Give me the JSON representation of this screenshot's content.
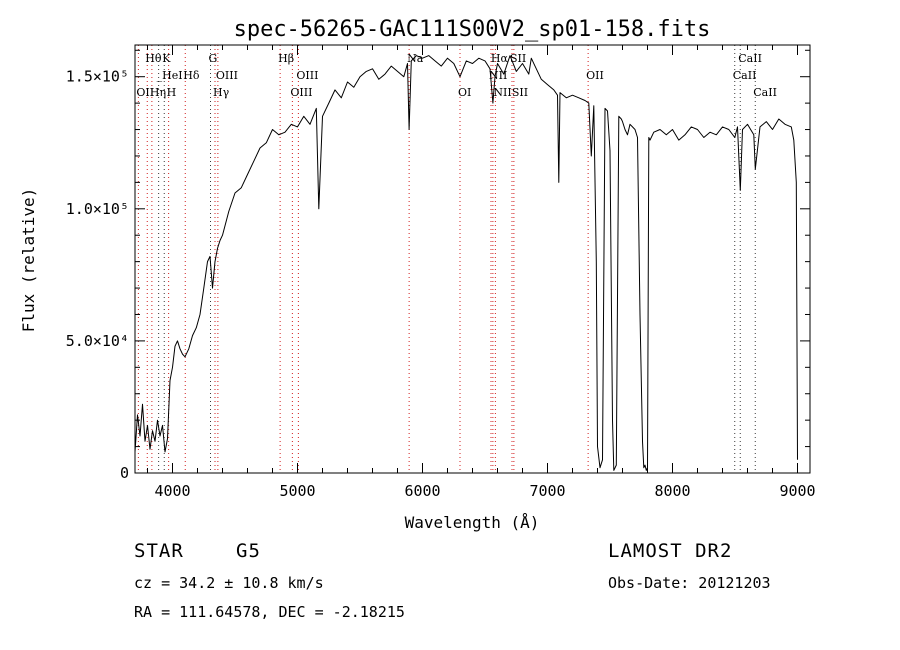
{
  "chart_data": {
    "type": "line",
    "title": "spec-56265-GAC111S00V2_sp01-158.fits",
    "xlabel": "Wavelength (Å)",
    "ylabel": "Flux (relative)",
    "xlim": [
      3700,
      9100
    ],
    "ylim": [
      0,
      162000
    ],
    "x_ticks": [
      4000,
      5000,
      6000,
      7000,
      8000,
      9000
    ],
    "x_tick_labels": [
      "4000",
      "5000",
      "6000",
      "7000",
      "8000",
      "9000"
    ],
    "y_ticks": [
      0,
      50000,
      100000,
      150000
    ],
    "y_tick_labels": [
      "0",
      "5.0×10⁴",
      "1.0×10⁵",
      "1.5×10⁵"
    ],
    "grid": false,
    "series": [
      {
        "x": [
          3700,
          3720,
          3740,
          3760,
          3780,
          3800,
          3820,
          3840,
          3860,
          3880,
          3900,
          3920,
          3940,
          3960,
          3980,
          4000,
          4020,
          4040,
          4060,
          4080,
          4100,
          4130,
          4160,
          4190,
          4220,
          4250,
          4280,
          4300,
          4320,
          4340,
          4360,
          4380,
          4400,
          4450,
          4500,
          4550,
          4600,
          4650,
          4700,
          4750,
          4800,
          4850,
          4900,
          4950,
          5000,
          5050,
          5100,
          5150,
          5170,
          5200,
          5250,
          5300,
          5350,
          5400,
          5450,
          5500,
          5550,
          5600,
          5650,
          5700,
          5750,
          5800,
          5850,
          5880,
          5893,
          5910,
          5950,
          6000,
          6050,
          6100,
          6150,
          6200,
          6250,
          6300,
          6350,
          6400,
          6450,
          6500,
          6540,
          6563,
          6580,
          6600,
          6650,
          6700,
          6750,
          6800,
          6850,
          6870,
          6900,
          6950,
          7000,
          7050,
          7080,
          7090,
          7100,
          7150,
          7200,
          7250,
          7300,
          7330,
          7350,
          7370,
          7390,
          7400,
          7420,
          7440,
          7460,
          7480,
          7500,
          7520,
          7530,
          7550,
          7570,
          7590,
          7600,
          7620,
          7640,
          7660,
          7680,
          7700,
          7720,
          7740,
          7760,
          7770,
          7780,
          7790,
          7800,
          7810,
          7820,
          7850,
          7900,
          7950,
          8000,
          8050,
          8100,
          8150,
          8200,
          8250,
          8300,
          8350,
          8400,
          8450,
          8498,
          8520,
          8542,
          8560,
          8600,
          8650,
          8662,
          8700,
          8750,
          8800,
          8850,
          8900,
          8950,
          8970,
          8990,
          9000
        ],
        "y": [
          8000,
          22000,
          14000,
          26000,
          12000,
          18000,
          9000,
          16000,
          12000,
          20000,
          14000,
          18000,
          8000,
          13000,
          35000,
          40000,
          48000,
          50000,
          47000,
          45000,
          44000,
          47000,
          52000,
          55000,
          60000,
          70000,
          80000,
          82000,
          70000,
          80000,
          85000,
          88000,
          90000,
          99000,
          106000,
          108000,
          113000,
          118000,
          123000,
          125000,
          130000,
          128000,
          129000,
          132000,
          131000,
          135000,
          132000,
          138000,
          100000,
          135000,
          140000,
          145000,
          142000,
          148000,
          146000,
          150000,
          152000,
          153000,
          149000,
          151000,
          154000,
          152000,
          150000,
          155000,
          130000,
          156000,
          158000,
          157000,
          158000,
          156000,
          154000,
          157000,
          155000,
          150000,
          156000,
          155000,
          157000,
          156000,
          153000,
          140000,
          150000,
          155000,
          151000,
          158000,
          152000,
          155000,
          151000,
          157000,
          154000,
          149000,
          147000,
          145000,
          143000,
          110000,
          144000,
          142000,
          143000,
          142000,
          141000,
          140000,
          120000,
          139000,
          80000,
          10000,
          2000,
          5000,
          138000,
          137000,
          122000,
          20000,
          1000,
          3000,
          135000,
          134000,
          133000,
          130000,
          128000,
          132000,
          131000,
          130000,
          127000,
          60000,
          12000,
          2000,
          3000,
          1000,
          2000,
          127000,
          126000,
          129000,
          130000,
          128000,
          130000,
          126000,
          128000,
          131000,
          130000,
          127000,
          129000,
          128000,
          131000,
          130000,
          127000,
          131000,
          107000,
          130000,
          132000,
          128000,
          115000,
          131000,
          133000,
          130000,
          134000,
          132000,
          131000,
          126000,
          110000,
          5000
        ],
        "color": "#000000"
      }
    ],
    "lines": [
      {
        "label": "Hθ",
        "x": 3798,
        "row": 1
      },
      {
        "label": "K",
        "x": 3934,
        "row": 1
      },
      {
        "label": "_HeI",
        "x": 3889,
        "row": 2
      },
      {
        "label": "OII",
        "x": 3727,
        "row": 3
      },
      {
        "label": "Hη",
        "x": 3835,
        "row": 3
      },
      {
        "label": "H",
        "x": 3969,
        "row": 3
      },
      {
        "label": "Hδ",
        "x": 4102,
        "row": 2
      },
      {
        "label": "G",
        "x": 4304,
        "row": 1
      },
      {
        "label": "OIII",
        "x": 4363,
        "row": 2
      },
      {
        "label": "Hγ",
        "x": 4340,
        "row": 3
      },
      {
        "label": "Hβ",
        "x": 4861,
        "row": 1
      },
      {
        "label": "OIII",
        "x": 4959,
        "row": 3
      },
      {
        "label": "OIII",
        "x": 5007,
        "row": 2
      },
      {
        "label": "Na",
        "x": 5893,
        "row": 1
      },
      {
        "label": "OI",
        "x": 6300,
        "row": 3
      },
      {
        "label": "Hα",
        "x": 6563,
        "row": 1
      },
      {
        "label": "SII",
        "x": 6716,
        "row": 1
      },
      {
        "label": "NII",
        "x": 6548,
        "row": 2
      },
      {
        "label": "NII",
        "x": 6583,
        "row": 3
      },
      {
        "label": "SII",
        "x": 6731,
        "row": 3
      },
      {
        "label": "OII",
        "x": 7325,
        "row": 2
      },
      {
        "label": "CaII",
        "x": 8542,
        "row": 1
      },
      {
        "label": "CaII",
        "x": 8498,
        "row": 2
      },
      {
        "label": "CaII",
        "x": 8662,
        "row": 3
      }
    ]
  },
  "info": {
    "object_class": "STAR",
    "subclass": "G5",
    "survey": "LAMOST DR2",
    "obs_date": "Obs-Date: 20121203",
    "redshift": "cz = 34.2 ± 10.8 km/s",
    "coords": "RA = 111.64578, DEC =  -2.18215"
  },
  "colors": {
    "axis": "#000000",
    "spectrum": "#000000",
    "emission_marker": "#d21f1f",
    "absorption_marker": "#3a3a3a"
  }
}
